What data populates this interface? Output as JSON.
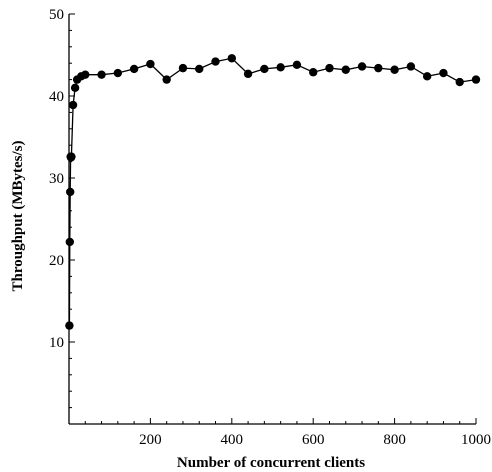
{
  "chart_data": {
    "type": "line",
    "title": "",
    "xlabel": "Number of concurrent clients",
    "ylabel": "Throughput (MBytes/s)",
    "xlim": [
      0,
      1000
    ],
    "ylim": [
      0,
      50
    ],
    "x_ticks": [
      200,
      400,
      600,
      800,
      1000
    ],
    "x_tick_labels": [
      "200",
      "400",
      "600",
      "800",
      "1000"
    ],
    "y_ticks": [
      10,
      20,
      30,
      40,
      50
    ],
    "y_tick_labels": [
      "10",
      "20",
      "30",
      "40",
      "50"
    ],
    "grid": false,
    "marker": "filled-circle",
    "line_color": "#000000",
    "series": [
      {
        "x": [
          1,
          2,
          3,
          4,
          5,
          6,
          10,
          15,
          20,
          30,
          40,
          80,
          120,
          160,
          200,
          240,
          280,
          320,
          360,
          400,
          440,
          480,
          520,
          560,
          600,
          640,
          680,
          720,
          760,
          800,
          840,
          880,
          920,
          960,
          1000
        ],
        "values": [
          12.0,
          22.2,
          28.3,
          32.6,
          32.5,
          32.6,
          38.9,
          41.0,
          42.0,
          42.4,
          42.6,
          42.6,
          42.8,
          43.3,
          43.9,
          42.0,
          43.4,
          43.3,
          44.2,
          44.6,
          42.7,
          43.3,
          43.5,
          43.8,
          42.9,
          43.4,
          43.2,
          43.6,
          43.4,
          43.2,
          43.6,
          42.4,
          42.8,
          41.7,
          42.0
        ]
      }
    ]
  }
}
